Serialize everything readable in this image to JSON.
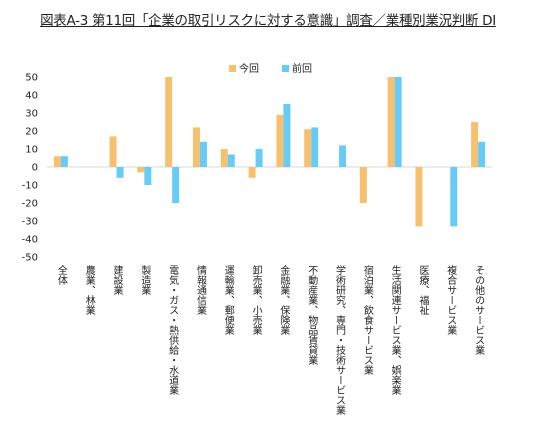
{
  "chart_data": {
    "type": "bar",
    "title": "図表A-3 第11回「企業の取引リスクに対する意識」調査／業種別業況判断 DI",
    "xlabel": "",
    "ylabel": "",
    "ylim": [
      -50,
      50
    ],
    "yticks": [
      50,
      40,
      30,
      20,
      10,
      0,
      -10,
      -20,
      -30,
      -40,
      -50
    ],
    "grid": false,
    "legend_position": "top-center",
    "categories": [
      "全体",
      "農業、林業",
      "建設業",
      "製造業",
      "電気・ガス・熱供給・水道業",
      "情報通信業",
      "運輸業、郵便業",
      "卸売業、小売業",
      "金融業、保険業",
      "不動産業、物品賃貸業",
      "学術研究、専門・技術サービス業",
      "宿泊業、飲食サービス業",
      "生活関連サービス業、娯楽業",
      "医療、福祉",
      "複合サービス業",
      "その他のサービス業"
    ],
    "series": [
      {
        "name": "今回",
        "color": "#F6C06F",
        "values": [
          6,
          0,
          17,
          -3,
          50,
          22,
          10,
          -6,
          29,
          21,
          0,
          -20,
          50,
          -33,
          0,
          25
        ]
      },
      {
        "name": "前回",
        "color": "#66CCF6",
        "values": [
          6,
          0,
          -6,
          -10,
          -20,
          14,
          7,
          10,
          35,
          22,
          12,
          0,
          50,
          0,
          -33,
          14
        ]
      }
    ]
  }
}
